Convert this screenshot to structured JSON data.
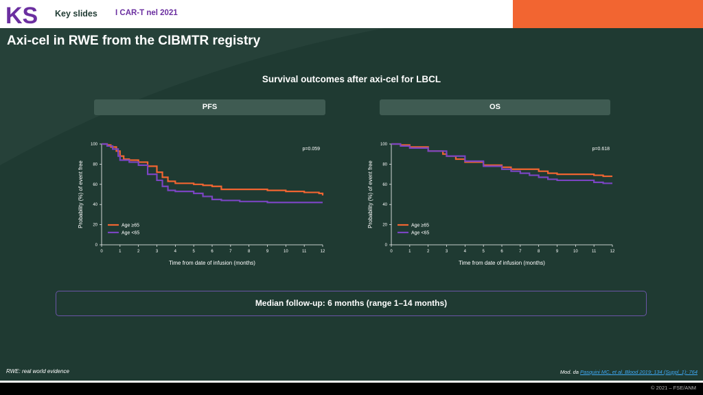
{
  "header": {
    "logo_text": "KS",
    "title": "Key slides",
    "subtitle": "I CAR-T nel 2021"
  },
  "slide": {
    "title": "Axi-cel in RWE from the CIBMTR registry",
    "section_title": "Survival outcomes after axi-cel for LBCL",
    "followup": "Median follow-up: 6 months (range 1–14 months)",
    "footnote": "RWE: real world evidence",
    "reference_prefix": "Mod. da ",
    "reference_link": "Pasquini MC, et al. Blood 2019; 134 (Suppl_1): 764",
    "copyright": "© 2021 – FSE/ANM"
  },
  "colors": {
    "accent_orange": "#f26531",
    "accent_purple": "#6b2fa0",
    "background": "#1f3a32",
    "series_age_ge65": "#f26531",
    "series_age_lt65": "#7a45c2"
  },
  "chart_data": [
    {
      "type": "line",
      "panel_title": "PFS",
      "xlabel": "Time from date of infusion (months)",
      "ylabel": "Probability (%) of event free",
      "xlim": [
        0,
        12
      ],
      "ylim": [
        0,
        100
      ],
      "x_ticks": [
        0,
        1,
        2,
        3,
        4,
        5,
        6,
        7,
        8,
        9,
        10,
        11,
        12
      ],
      "y_ticks": [
        0,
        20,
        40,
        60,
        80,
        100
      ],
      "annotation": "p=0.059",
      "legend_position": "bottom-left",
      "series": [
        {
          "name": "Age ≥65",
          "color": "#f26531",
          "points": [
            [
              0,
              100
            ],
            [
              0.3,
              99
            ],
            [
              0.5,
              97
            ],
            [
              0.8,
              93
            ],
            [
              1.0,
              88
            ],
            [
              1.2,
              85
            ],
            [
              1.5,
              84
            ],
            [
              2.0,
              82
            ],
            [
              2.5,
              78
            ],
            [
              3.0,
              72
            ],
            [
              3.3,
              67
            ],
            [
              3.6,
              63
            ],
            [
              4.0,
              61
            ],
            [
              5.0,
              60
            ],
            [
              5.5,
              59
            ],
            [
              6.0,
              58
            ],
            [
              6.5,
              55
            ],
            [
              7.0,
              55
            ],
            [
              9.0,
              54
            ],
            [
              10.0,
              53
            ],
            [
              11.0,
              52
            ],
            [
              11.8,
              51
            ],
            [
              12.0,
              49
            ]
          ]
        },
        {
          "name": "Age <65",
          "color": "#7a45c2",
          "points": [
            [
              0,
              100
            ],
            [
              0.3,
              98
            ],
            [
              0.6,
              95
            ],
            [
              0.9,
              88
            ],
            [
              1.0,
              84
            ],
            [
              1.5,
              82
            ],
            [
              2.0,
              79
            ],
            [
              2.5,
              70
            ],
            [
              3.0,
              64
            ],
            [
              3.3,
              58
            ],
            [
              3.6,
              54
            ],
            [
              4.0,
              53
            ],
            [
              5.0,
              51
            ],
            [
              5.5,
              48
            ],
            [
              6.0,
              45
            ],
            [
              6.5,
              44
            ],
            [
              7.5,
              43
            ],
            [
              9.0,
              42
            ],
            [
              12.0,
              42
            ]
          ]
        }
      ]
    },
    {
      "type": "line",
      "panel_title": "OS",
      "xlabel": "Time from date of infusion (months)",
      "ylabel": "Probability (%) of event free",
      "xlim": [
        0,
        12
      ],
      "ylim": [
        0,
        100
      ],
      "x_ticks": [
        0,
        1,
        2,
        3,
        4,
        5,
        6,
        7,
        8,
        9,
        10,
        11,
        12
      ],
      "y_ticks": [
        0,
        20,
        40,
        60,
        80,
        100
      ],
      "annotation": "p=0.618",
      "legend_position": "bottom-left",
      "series": [
        {
          "name": "Age ≥65",
          "color": "#f26531",
          "points": [
            [
              0,
              100
            ],
            [
              0.5,
              99
            ],
            [
              1.0,
              97
            ],
            [
              2.0,
              93
            ],
            [
              2.8,
              90
            ],
            [
              3.0,
              88
            ],
            [
              3.5,
              85
            ],
            [
              4.0,
              82
            ],
            [
              5.0,
              79
            ],
            [
              6.0,
              77
            ],
            [
              6.5,
              75
            ],
            [
              7.0,
              75
            ],
            [
              8.0,
              73
            ],
            [
              8.5,
              71
            ],
            [
              9.0,
              70
            ],
            [
              10.0,
              70
            ],
            [
              11.0,
              69
            ],
            [
              11.5,
              68
            ],
            [
              12.0,
              68
            ]
          ]
        },
        {
          "name": "Age <65",
          "color": "#7a45c2",
          "points": [
            [
              0,
              100
            ],
            [
              0.5,
              98
            ],
            [
              1.0,
              96
            ],
            [
              2.0,
              93
            ],
            [
              3.0,
              88
            ],
            [
              4.0,
              83
            ],
            [
              5.0,
              78
            ],
            [
              6.0,
              75
            ],
            [
              6.5,
              73
            ],
            [
              7.0,
              71
            ],
            [
              7.5,
              69
            ],
            [
              8.0,
              67
            ],
            [
              8.5,
              65
            ],
            [
              9.0,
              64
            ],
            [
              10.0,
              64
            ],
            [
              11.0,
              62
            ],
            [
              11.5,
              61
            ],
            [
              12.0,
              61
            ]
          ]
        }
      ]
    }
  ]
}
